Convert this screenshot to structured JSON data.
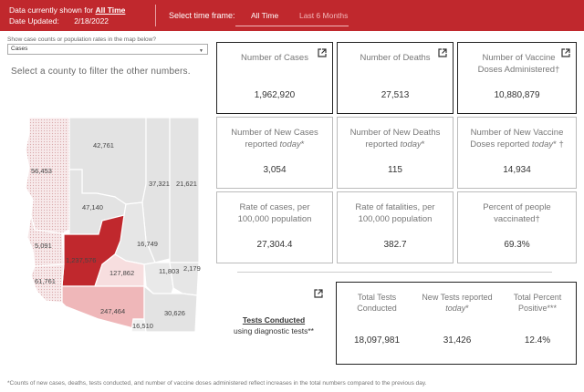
{
  "header": {
    "data_shown_label": "Data currently shown for",
    "data_shown_value": "All Time",
    "date_label": "Date Updated:",
    "date_value": "2/18/2022",
    "timeframe_label": "Select time frame:",
    "tabs": [
      {
        "label": "All Time",
        "active": true
      },
      {
        "label": "Last 6 Months",
        "active": false
      }
    ]
  },
  "controls": {
    "select_label": "Show case counts or population rates in the map below?",
    "select_value": "Cases",
    "hint": "Select a county to filter the other numbers."
  },
  "map": {
    "counties": [
      {
        "name": "mohave",
        "label": "56,453"
      },
      {
        "name": "coconino",
        "label": "42,761"
      },
      {
        "name": "navajo",
        "label": "37,321"
      },
      {
        "name": "apache",
        "label": "21,621"
      },
      {
        "name": "yavapai",
        "label": "47,140"
      },
      {
        "name": "la-paz",
        "label": "5,091"
      },
      {
        "name": "maricopa",
        "label": "1,237,576"
      },
      {
        "name": "gila",
        "label": "16,749"
      },
      {
        "name": "yuma",
        "label": "61,761"
      },
      {
        "name": "pinal",
        "label": "127,862"
      },
      {
        "name": "graham",
        "label": "11,803"
      },
      {
        "name": "greenlee",
        "label": "2,179"
      },
      {
        "name": "pima",
        "label": "247,464"
      },
      {
        "name": "santa-cruz",
        "label": "16,510"
      },
      {
        "name": "cochise",
        "label": "30,626"
      }
    ],
    "colors": {
      "highlight": "#c0282d",
      "medium": "#efb7b9",
      "light": "#f7dedf",
      "hatched": "#f4e4e5",
      "neutral": "#dcdcdc"
    }
  },
  "cards": [
    {
      "title": "Number of Cases",
      "value": "1,962,920"
    },
    {
      "title": "Number of Deaths",
      "value": "27,513"
    },
    {
      "title": "Number of Vaccine Doses Administered†",
      "value": "10,880,879"
    },
    {
      "title_pre": "Number of New Cases reported ",
      "title_em": "today",
      "title_post": "*",
      "value": "3,054"
    },
    {
      "title_pre": "Number of New Deaths reported ",
      "title_em": "today",
      "title_post": "*",
      "value": "115"
    },
    {
      "title_pre": "Number of New Vaccine Doses reported ",
      "title_em": "today",
      "title_post": "* †",
      "value": "14,934"
    },
    {
      "title": "Rate of cases, per 100,000 population",
      "value": "27,304.4"
    },
    {
      "title": "Rate of fatalities, per 100,000 population",
      "value": "382.7"
    },
    {
      "title": "Percent of people vaccinated†",
      "value": "69.3%"
    }
  ],
  "tests": {
    "title": "Tests Conducted",
    "subtitle": "using diagnostic tests**",
    "columns": [
      {
        "title": "Total Tests Conducted",
        "value": "18,097,981"
      },
      {
        "title_pre": "New Tests reported ",
        "title_em": "today",
        "title_post": "*",
        "value": "31,426"
      },
      {
        "title": "Total Percent Positive***",
        "value": "12.4%"
      }
    ]
  },
  "footnote": "*Counts of new cases, deaths, tests conducted, and number of vaccine doses administered reflect increases in the total numbers compared to the previous day.",
  "icons": {
    "external_link": "external-link-icon"
  },
  "accent": "#c0282d"
}
